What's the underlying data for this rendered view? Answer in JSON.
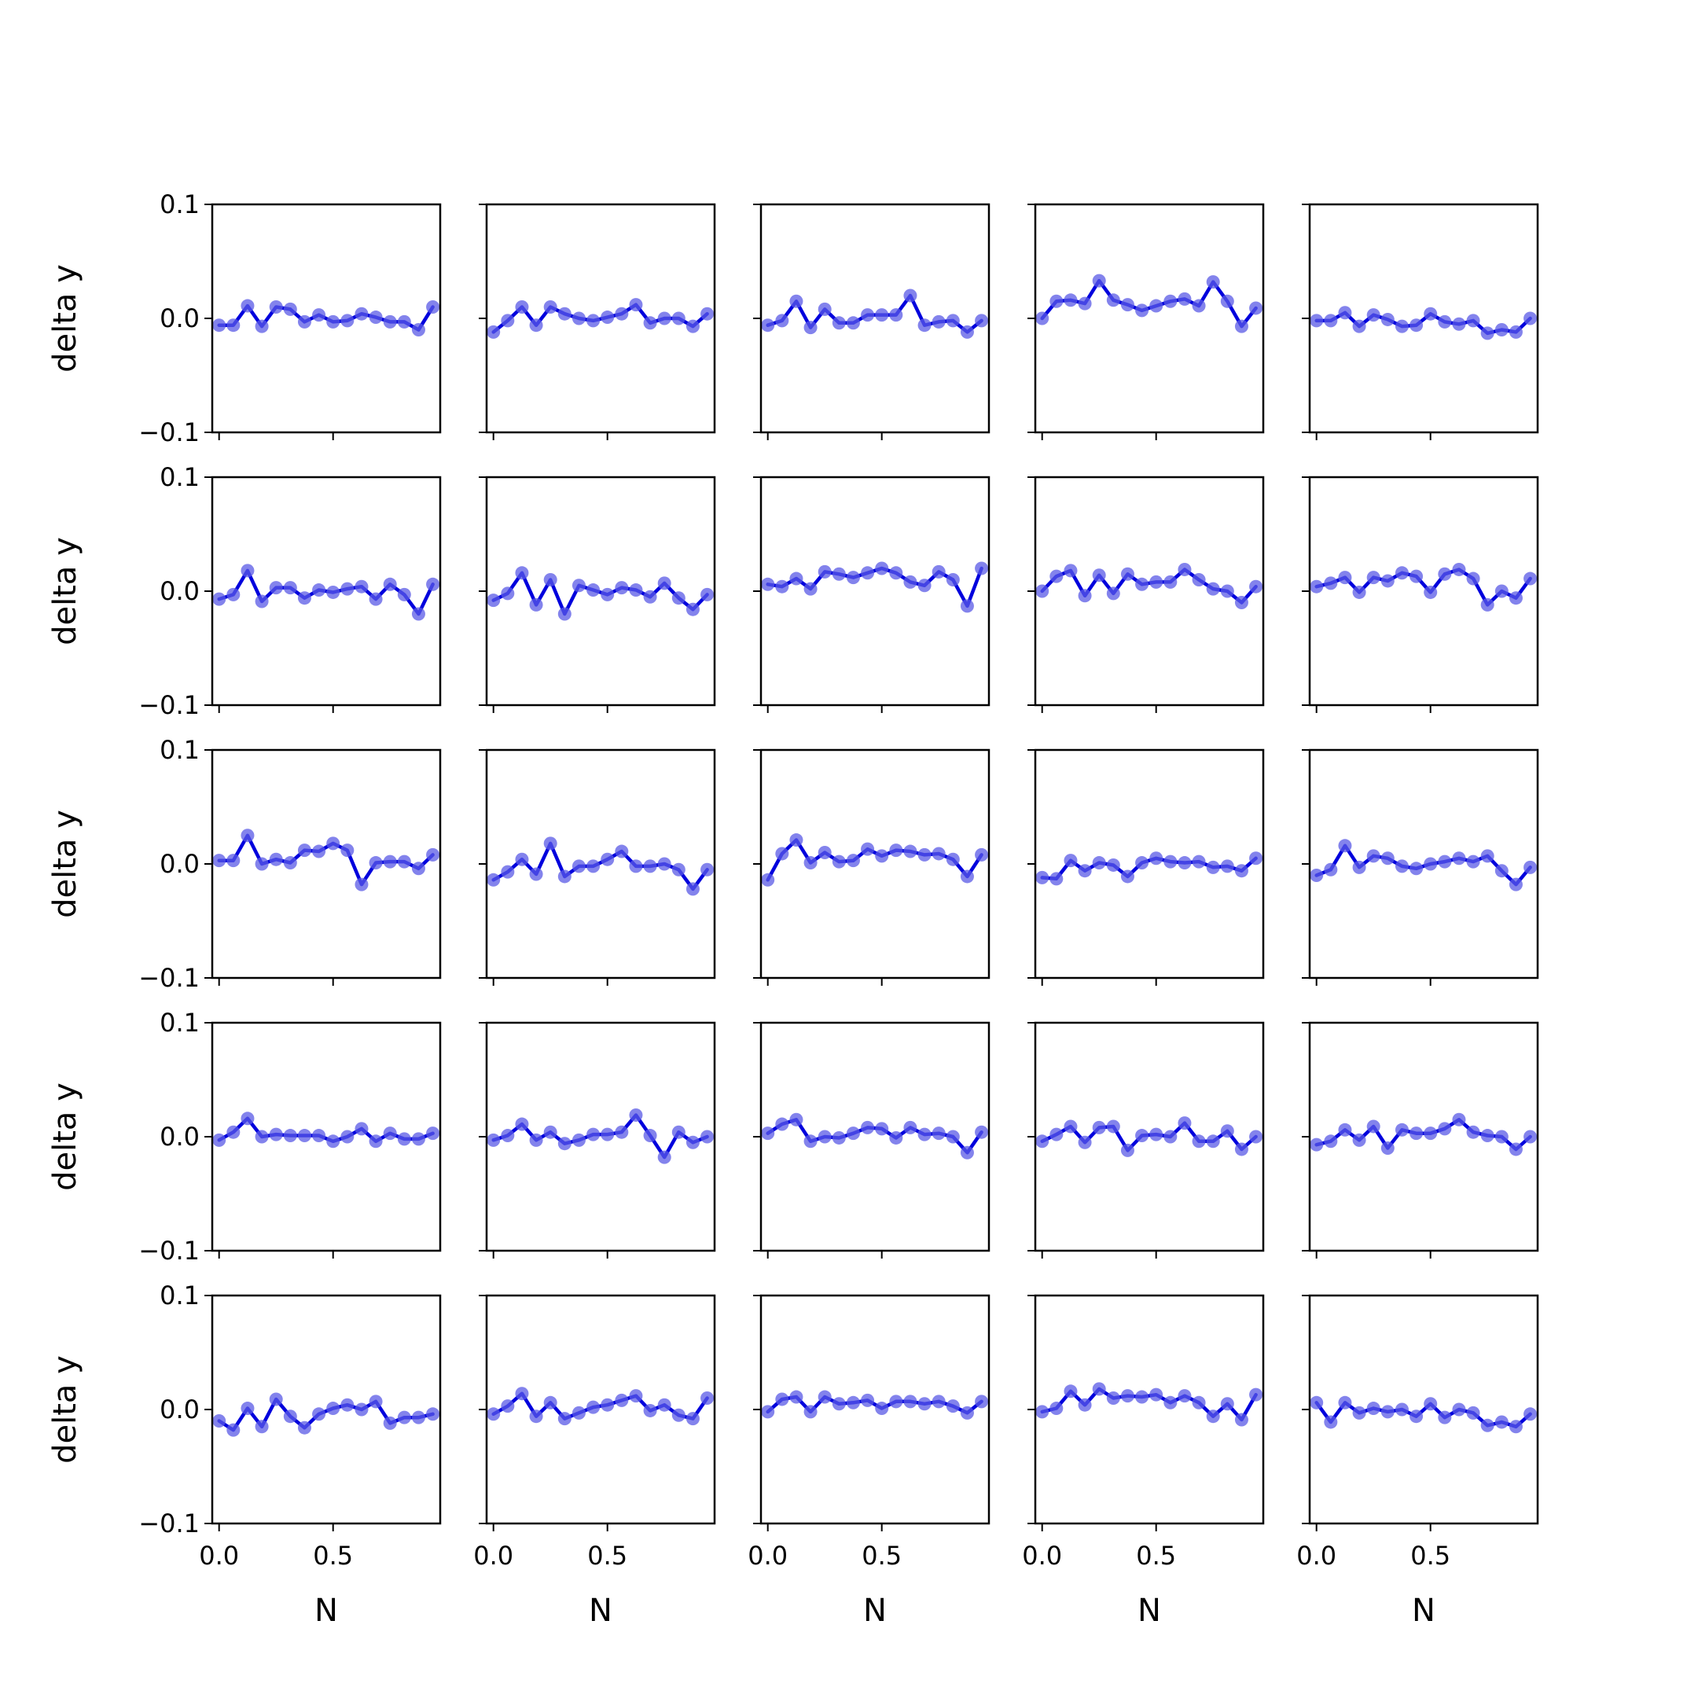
{
  "figure": {
    "color": "#0000dd",
    "marker_color": "#5a5ae6",
    "background": "#ffffff",
    "axis_color": "#000000"
  },
  "chart_data": {
    "type": "line",
    "layout": "5x5 grid of subplots",
    "markers": "circle",
    "grid": false,
    "legend": "none",
    "xlabel": "N",
    "ylabel": "delta y",
    "xlim": [
      -0.03,
      0.97
    ],
    "ylim": [
      -0.1,
      0.1
    ],
    "x_ticks": [
      "0.0",
      "0.5"
    ],
    "y_ticks": [
      "−0.1",
      "0.0",
      "0.1"
    ],
    "x": [
      0,
      0.0625,
      0.125,
      0.1875,
      0.25,
      0.3125,
      0.375,
      0.4375,
      0.5,
      0.5625,
      0.625,
      0.6875,
      0.75,
      0.8125,
      0.875,
      0.9375
    ],
    "subplots": [
      {
        "row": 1,
        "col": 1,
        "values": [
          -0.006,
          -0.006,
          0.011,
          -0.007,
          0.01,
          0.008,
          -0.003,
          0.003,
          -0.003,
          -0.002,
          0.004,
          0.001,
          -0.003,
          -0.003,
          -0.01,
          0.01
        ]
      },
      {
        "row": 1,
        "col": 2,
        "values": [
          -0.012,
          -0.002,
          0.01,
          -0.006,
          0.01,
          0.004,
          0.0,
          -0.002,
          0.001,
          0.004,
          0.012,
          -0.004,
          0.0,
          0.0,
          -0.007,
          0.004
        ]
      },
      {
        "row": 1,
        "col": 3,
        "values": [
          -0.006,
          -0.002,
          0.015,
          -0.008,
          0.008,
          -0.004,
          -0.004,
          0.003,
          0.003,
          0.003,
          0.02,
          -0.006,
          -0.003,
          -0.002,
          -0.012,
          -0.002
        ]
      },
      {
        "row": 1,
        "col": 4,
        "values": [
          0.0,
          0.015,
          0.016,
          0.013,
          0.033,
          0.016,
          0.012,
          0.007,
          0.011,
          0.015,
          0.017,
          0.011,
          0.032,
          0.015,
          -0.007,
          0.009
        ]
      },
      {
        "row": 1,
        "col": 5,
        "values": [
          -0.002,
          -0.002,
          0.005,
          -0.007,
          0.003,
          -0.001,
          -0.007,
          -0.006,
          0.004,
          -0.003,
          -0.005,
          -0.002,
          -0.013,
          -0.01,
          -0.012,
          0.0
        ]
      },
      {
        "row": 2,
        "col": 1,
        "values": [
          -0.007,
          -0.003,
          0.018,
          -0.009,
          0.003,
          0.003,
          -0.006,
          0.001,
          -0.001,
          0.002,
          0.004,
          -0.007,
          0.006,
          -0.003,
          -0.02,
          0.006
        ]
      },
      {
        "row": 2,
        "col": 2,
        "values": [
          -0.008,
          -0.002,
          0.016,
          -0.012,
          0.01,
          -0.02,
          0.005,
          0.001,
          -0.003,
          0.003,
          0.001,
          -0.005,
          0.007,
          -0.006,
          -0.016,
          -0.003
        ]
      },
      {
        "row": 2,
        "col": 3,
        "values": [
          0.006,
          0.004,
          0.011,
          0.002,
          0.017,
          0.015,
          0.012,
          0.016,
          0.02,
          0.016,
          0.008,
          0.005,
          0.017,
          0.01,
          -0.013,
          0.02
        ]
      },
      {
        "row": 2,
        "col": 4,
        "values": [
          0.0,
          0.013,
          0.018,
          -0.004,
          0.014,
          -0.002,
          0.015,
          0.006,
          0.008,
          0.008,
          0.019,
          0.01,
          0.002,
          0.0,
          -0.01,
          0.004
        ]
      },
      {
        "row": 2,
        "col": 5,
        "values": [
          0.004,
          0.007,
          0.012,
          -0.001,
          0.012,
          0.009,
          0.016,
          0.013,
          -0.001,
          0.015,
          0.019,
          0.011,
          -0.012,
          0.0,
          -0.006,
          0.011
        ]
      },
      {
        "row": 3,
        "col": 1,
        "values": [
          0.003,
          0.003,
          0.025,
          0.0,
          0.004,
          0.001,
          0.012,
          0.011,
          0.018,
          0.012,
          -0.018,
          0.001,
          0.002,
          0.002,
          -0.004,
          0.008
        ]
      },
      {
        "row": 3,
        "col": 2,
        "values": [
          -0.014,
          -0.007,
          0.004,
          -0.009,
          0.018,
          -0.011,
          -0.002,
          -0.002,
          0.004,
          0.011,
          -0.002,
          -0.002,
          0.0,
          -0.005,
          -0.022,
          -0.005
        ]
      },
      {
        "row": 3,
        "col": 3,
        "values": [
          -0.014,
          0.009,
          0.021,
          0.001,
          0.01,
          0.002,
          0.003,
          0.013,
          0.007,
          0.012,
          0.011,
          0.008,
          0.009,
          0.004,
          -0.011,
          0.008
        ]
      },
      {
        "row": 3,
        "col": 4,
        "values": [
          -0.012,
          -0.013,
          0.003,
          -0.006,
          0.001,
          -0.001,
          -0.011,
          0.001,
          0.005,
          0.002,
          0.001,
          0.002,
          -0.003,
          -0.002,
          -0.006,
          0.005
        ]
      },
      {
        "row": 3,
        "col": 5,
        "values": [
          -0.01,
          -0.005,
          0.016,
          -0.003,
          0.007,
          0.005,
          -0.002,
          -0.004,
          0.0,
          0.002,
          0.005,
          0.002,
          0.007,
          -0.006,
          -0.018,
          -0.003
        ]
      },
      {
        "row": 4,
        "col": 1,
        "values": [
          -0.003,
          0.004,
          0.016,
          0.0,
          0.002,
          0.001,
          0.001,
          0.001,
          -0.004,
          0.0,
          0.007,
          -0.004,
          0.003,
          -0.002,
          -0.002,
          0.003
        ]
      },
      {
        "row": 4,
        "col": 2,
        "values": [
          -0.003,
          0.001,
          0.011,
          -0.003,
          0.004,
          -0.006,
          -0.003,
          0.002,
          0.002,
          0.004,
          0.019,
          0.001,
          -0.018,
          0.004,
          -0.005,
          0.0
        ]
      },
      {
        "row": 4,
        "col": 3,
        "values": [
          0.003,
          0.011,
          0.015,
          -0.004,
          0.0,
          -0.001,
          0.003,
          0.008,
          0.007,
          -0.001,
          0.008,
          0.002,
          0.003,
          0.0,
          -0.014,
          0.004
        ]
      },
      {
        "row": 4,
        "col": 4,
        "values": [
          -0.004,
          0.002,
          0.009,
          -0.005,
          0.008,
          0.009,
          -0.012,
          0.001,
          0.002,
          0.0,
          0.012,
          -0.004,
          -0.004,
          0.005,
          -0.011,
          0.0
        ]
      },
      {
        "row": 4,
        "col": 5,
        "values": [
          -0.007,
          -0.004,
          0.006,
          -0.003,
          0.009,
          -0.01,
          0.006,
          0.003,
          0.003,
          0.007,
          0.015,
          0.004,
          0.001,
          0.0,
          -0.011,
          0.0
        ]
      },
      {
        "row": 5,
        "col": 1,
        "values": [
          -0.01,
          -0.018,
          0.001,
          -0.015,
          0.009,
          -0.006,
          -0.016,
          -0.004,
          0.001,
          0.004,
          0.0,
          0.007,
          -0.012,
          -0.007,
          -0.007,
          -0.004
        ]
      },
      {
        "row": 5,
        "col": 2,
        "values": [
          -0.004,
          0.003,
          0.014,
          -0.006,
          0.006,
          -0.008,
          -0.003,
          0.002,
          0.004,
          0.008,
          0.012,
          -0.001,
          0.004,
          -0.005,
          -0.008,
          0.01
        ]
      },
      {
        "row": 5,
        "col": 3,
        "values": [
          -0.002,
          0.009,
          0.011,
          -0.002,
          0.011,
          0.005,
          0.006,
          0.008,
          0.001,
          0.007,
          0.007,
          0.005,
          0.007,
          0.003,
          -0.003,
          0.007
        ]
      },
      {
        "row": 5,
        "col": 4,
        "values": [
          -0.002,
          0.001,
          0.016,
          0.004,
          0.018,
          0.01,
          0.012,
          0.011,
          0.013,
          0.006,
          0.012,
          0.006,
          -0.006,
          0.005,
          -0.009,
          0.013
        ]
      },
      {
        "row": 5,
        "col": 5,
        "values": [
          0.006,
          -0.011,
          0.006,
          -0.003,
          0.001,
          -0.002,
          0.0,
          -0.006,
          0.005,
          -0.007,
          0.0,
          -0.003,
          -0.014,
          -0.011,
          -0.015,
          -0.004
        ]
      }
    ]
  }
}
